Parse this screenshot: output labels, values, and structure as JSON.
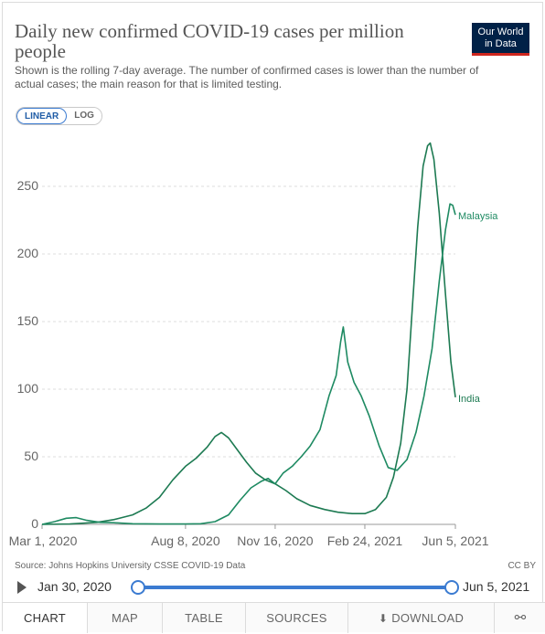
{
  "header": {
    "title": "Daily new confirmed COVID-19 cases per million people",
    "subtitle": "Shown is the rolling 7-day average. The number of confirmed cases is lower than the number of actual cases; the main reason for that is limited testing.",
    "logo_line1": "Our World",
    "logo_line2": "in Data"
  },
  "scale_toggle": {
    "linear_label": "LINEAR",
    "log_label": "LOG",
    "selected": "LINEAR"
  },
  "chart_data": {
    "type": "line",
    "title": "Daily new confirmed COVID-19 cases per million people",
    "xlabel": "",
    "ylabel": "",
    "y_ticks": [
      0,
      50,
      100,
      150,
      200,
      250
    ],
    "ylim": [
      0,
      290
    ],
    "x_ticks": [
      "Mar 1, 2020",
      "Aug 8, 2020",
      "Nov 16, 2020",
      "Feb 24, 2021",
      "Jun 5, 2021"
    ],
    "xlim": [
      "2020-03-01",
      "2021-06-05"
    ],
    "grid": "horizontal dashed",
    "legend": "labels at line ends (right)",
    "series": [
      {
        "name": "India",
        "color": "#1d7a52",
        "points": [
          [
            "2020-03-01",
            0
          ],
          [
            "2020-04-01",
            0.3
          ],
          [
            "2020-05-01",
            1.5
          ],
          [
            "2020-05-20",
            3.5
          ],
          [
            "2020-06-10",
            7
          ],
          [
            "2020-06-25",
            12
          ],
          [
            "2020-07-10",
            20
          ],
          [
            "2020-07-25",
            33
          ],
          [
            "2020-08-08",
            43
          ],
          [
            "2020-08-20",
            49
          ],
          [
            "2020-09-01",
            57
          ],
          [
            "2020-09-10",
            65
          ],
          [
            "2020-09-17",
            68
          ],
          [
            "2020-09-25",
            64
          ],
          [
            "2020-10-05",
            55
          ],
          [
            "2020-10-15",
            46
          ],
          [
            "2020-10-25",
            38
          ],
          [
            "2020-11-05",
            33
          ],
          [
            "2020-11-16",
            30
          ],
          [
            "2020-11-28",
            25
          ],
          [
            "2020-12-10",
            19
          ],
          [
            "2020-12-25",
            14
          ],
          [
            "2021-01-10",
            11
          ],
          [
            "2021-01-25",
            9
          ],
          [
            "2021-02-10",
            8
          ],
          [
            "2021-02-24",
            8
          ],
          [
            "2021-03-08",
            11
          ],
          [
            "2021-03-20",
            20
          ],
          [
            "2021-03-28",
            35
          ],
          [
            "2021-04-05",
            60
          ],
          [
            "2021-04-12",
            100
          ],
          [
            "2021-04-18",
            160
          ],
          [
            "2021-04-24",
            220
          ],
          [
            "2021-04-30",
            265
          ],
          [
            "2021-05-05",
            280
          ],
          [
            "2021-05-08",
            282
          ],
          [
            "2021-05-12",
            270
          ],
          [
            "2021-05-18",
            230
          ],
          [
            "2021-05-25",
            170
          ],
          [
            "2021-05-31",
            120
          ],
          [
            "2021-06-05",
            94
          ]
        ]
      },
      {
        "name": "Malaysia",
        "color": "#1e8a62",
        "points": [
          [
            "2020-03-01",
            0
          ],
          [
            "2020-03-15",
            2
          ],
          [
            "2020-03-28",
            4.5
          ],
          [
            "2020-04-08",
            5
          ],
          [
            "2020-04-20",
            3
          ],
          [
            "2020-05-05",
            1.5
          ],
          [
            "2020-05-20",
            1.2
          ],
          [
            "2020-06-10",
            0.5
          ],
          [
            "2020-07-10",
            0.3
          ],
          [
            "2020-08-08",
            0.3
          ],
          [
            "2020-08-25",
            0.5
          ],
          [
            "2020-09-10",
            2
          ],
          [
            "2020-09-25",
            7
          ],
          [
            "2020-10-08",
            18
          ],
          [
            "2020-10-20",
            27
          ],
          [
            "2020-11-01",
            32
          ],
          [
            "2020-11-08",
            34
          ],
          [
            "2020-11-16",
            30
          ],
          [
            "2020-11-25",
            38
          ],
          [
            "2020-12-05",
            43
          ],
          [
            "2020-12-15",
            50
          ],
          [
            "2020-12-25",
            58
          ],
          [
            "2021-01-05",
            70
          ],
          [
            "2021-01-15",
            95
          ],
          [
            "2021-01-23",
            110
          ],
          [
            "2021-01-28",
            135
          ],
          [
            "2021-01-31",
            146
          ],
          [
            "2021-02-05",
            120
          ],
          [
            "2021-02-12",
            105
          ],
          [
            "2021-02-20",
            95
          ],
          [
            "2021-03-01",
            80
          ],
          [
            "2021-03-12",
            58
          ],
          [
            "2021-03-22",
            42
          ],
          [
            "2021-04-01",
            40
          ],
          [
            "2021-04-12",
            48
          ],
          [
            "2021-04-22",
            68
          ],
          [
            "2021-05-01",
            95
          ],
          [
            "2021-05-10",
            130
          ],
          [
            "2021-05-18",
            180
          ],
          [
            "2021-05-25",
            218
          ],
          [
            "2021-05-30",
            237
          ],
          [
            "2021-06-02",
            236
          ],
          [
            "2021-06-05",
            229
          ]
        ]
      }
    ]
  },
  "footer": {
    "source": "Source: Johns Hopkins University CSSE COVID-19 Data",
    "license": "CC BY"
  },
  "timeline": {
    "start_label": "Jan 30, 2020",
    "end_label": "Jun 5, 2021",
    "start_fraction": 0.0,
    "end_fraction": 1.0
  },
  "tabs": [
    {
      "label": "CHART",
      "active": true
    },
    {
      "label": "MAP",
      "active": false
    },
    {
      "label": "TABLE",
      "active": false
    },
    {
      "label": "SOURCES",
      "active": false
    },
    {
      "label": "DOWNLOAD",
      "active": false
    },
    {
      "label": "",
      "active": false
    }
  ],
  "icons": {
    "play": "play-icon",
    "download": "download-icon",
    "share": "share-icon"
  }
}
